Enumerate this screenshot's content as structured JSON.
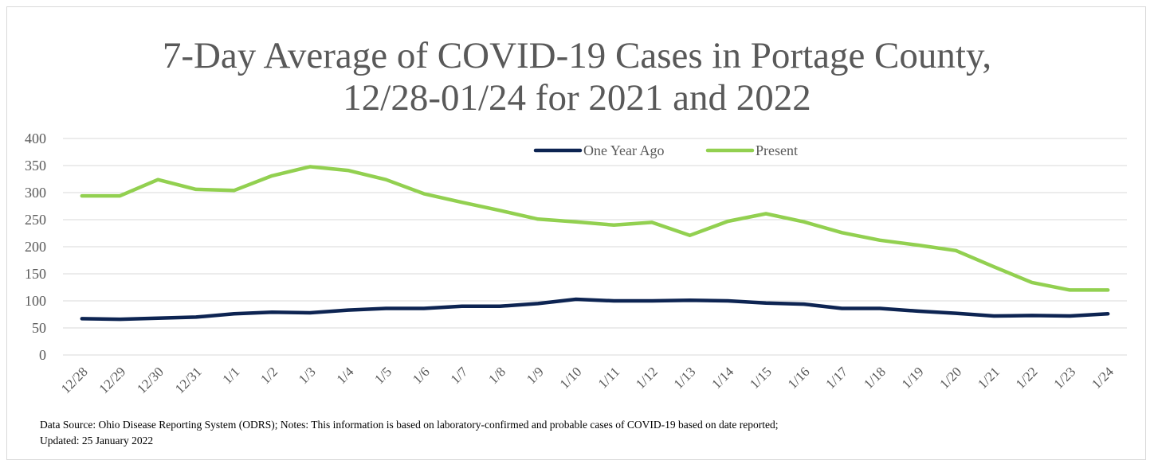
{
  "chart_data": {
    "type": "line",
    "title_lines": [
      "7-Day Average of COVID-19 Cases in Portage County,",
      "12/28-01/24 for 2021 and 2022"
    ],
    "xlabel": "",
    "ylabel": "",
    "ylim": [
      0,
      400
    ],
    "yticks": [
      "0",
      "50",
      "100",
      "150",
      "200",
      "250",
      "300",
      "350",
      "400"
    ],
    "grid": true,
    "legend_position": "top-center",
    "categories": [
      "12/28",
      "12/29",
      "12/30",
      "12/31",
      "1/1",
      "1/2",
      "1/3",
      "1/4",
      "1/5",
      "1/6",
      "1/7",
      "1/8",
      "1/9",
      "1/10",
      "1/11",
      "1/12",
      "1/13",
      "1/14",
      "1/15",
      "1/16",
      "1/17",
      "1/18",
      "1/19",
      "1/20",
      "1/21",
      "1/22",
      "1/23",
      "1/24"
    ],
    "series": [
      {
        "name": "One Year Ago",
        "color": "#0d2452",
        "values": [
          67,
          66,
          68,
          70,
          76,
          79,
          78,
          83,
          86,
          86,
          90,
          90,
          95,
          103,
          100,
          100,
          101,
          100,
          96,
          94,
          86,
          86,
          81,
          77,
          72,
          73,
          72,
          76
        ]
      },
      {
        "name": "Present",
        "color": "#92d050",
        "values": [
          294,
          294,
          324,
          306,
          304,
          331,
          348,
          341,
          324,
          298,
          282,
          267,
          251,
          246,
          240,
          245,
          221,
          247,
          261,
          246,
          226,
          212,
          203,
          193,
          163,
          134,
          120,
          120
        ]
      }
    ]
  },
  "footnote": {
    "line1": "Data Source: Ohio Disease Reporting System (ODRS); Notes: This information is based on laboratory-confirmed and probable cases of COVID-19 based on date reported;",
    "line2": "Updated: 25 January 2022"
  }
}
